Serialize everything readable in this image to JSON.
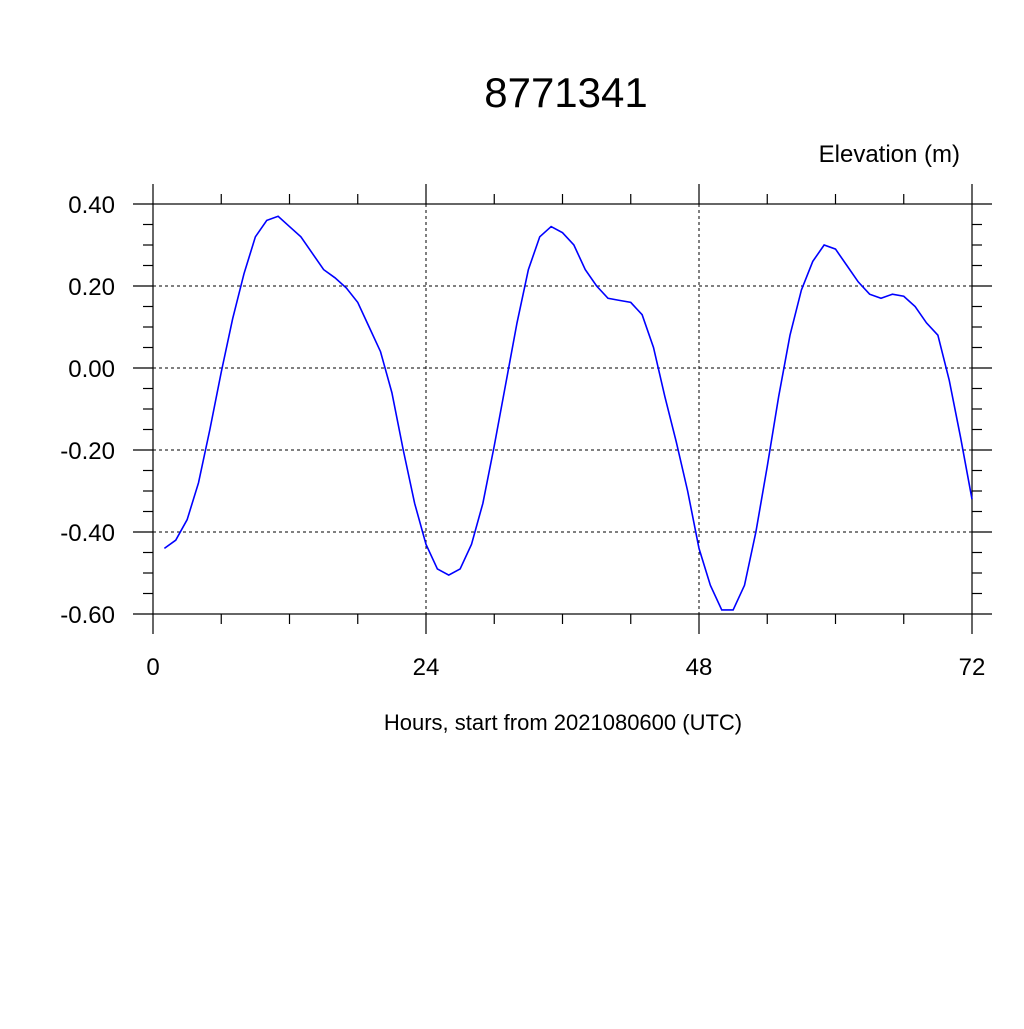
{
  "chart_data": {
    "type": "line",
    "title": "8771341",
    "subtitle": "Elevation (m)",
    "x_label": "Hours, start from 2021080600 (UTC)",
    "x": [
      1,
      2,
      3,
      4,
      5,
      6,
      7,
      8,
      9,
      10,
      11,
      12,
      13,
      14,
      15,
      16,
      17,
      18,
      19,
      20,
      21,
      22,
      23,
      24,
      25,
      26,
      27,
      28,
      29,
      30,
      31,
      32,
      33,
      34,
      35,
      36,
      37,
      38,
      39,
      40,
      41,
      42,
      43,
      44,
      45,
      46,
      47,
      48,
      49,
      50,
      51,
      52,
      53,
      54,
      55,
      56,
      57,
      58,
      59,
      60,
      61,
      62,
      63,
      64,
      65,
      66,
      67,
      68,
      69,
      70,
      71,
      72
    ],
    "series": [
      {
        "color": "#0000ff",
        "values": [
          -0.44,
          -0.42,
          -0.37,
          -0.28,
          -0.15,
          -0.01,
          0.12,
          0.23,
          0.32,
          0.36,
          0.37,
          0.345,
          0.32,
          0.28,
          0.24,
          0.22,
          0.195,
          0.16,
          0.1,
          0.04,
          -0.06,
          -0.2,
          -0.33,
          -0.43,
          -0.49,
          -0.505,
          -0.49,
          -0.43,
          -0.33,
          -0.19,
          -0.04,
          0.11,
          0.24,
          0.32,
          0.345,
          0.33,
          0.3,
          0.24,
          0.2,
          0.17,
          0.165,
          0.16,
          0.13,
          0.05,
          -0.07,
          -0.18,
          -0.3,
          -0.44,
          -0.53,
          -0.59,
          -0.59,
          -0.53,
          -0.4,
          -0.24,
          -0.07,
          0.08,
          0.19,
          0.26,
          0.3,
          0.29,
          0.25,
          0.21,
          0.18,
          0.17,
          0.18,
          0.175,
          0.15,
          0.11,
          0.08,
          -0.03,
          -0.17,
          -0.32
        ]
      }
    ],
    "xlim": [
      0,
      72
    ],
    "xticks": [
      0,
      24,
      48,
      72
    ],
    "ylim": [
      -0.6,
      0.4
    ],
    "yticks": [
      {
        "value": -0.6,
        "label": "-0.60"
      },
      {
        "value": -0.4,
        "label": "-0.40"
      },
      {
        "value": -0.2,
        "label": "-0.20"
      },
      {
        "value": 0,
        "label": "0.00"
      },
      {
        "value": 0.2,
        "label": "0.20"
      },
      {
        "value": 0.4,
        "label": "0.40"
      }
    ],
    "grid": true
  }
}
